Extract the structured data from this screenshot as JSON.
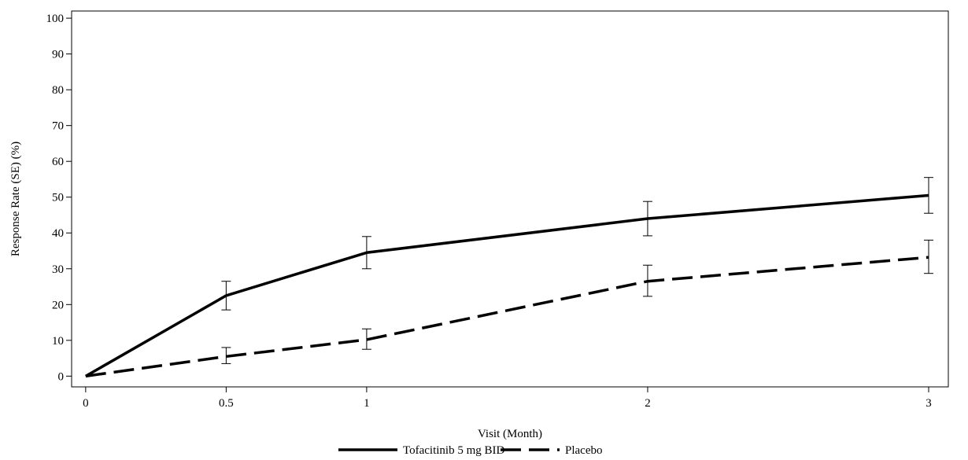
{
  "chart_data": {
    "type": "line",
    "title": "",
    "xlabel": "Visit (Month)",
    "ylabel": "Response Rate (SE) (%)",
    "xlim": [
      -0.05,
      3.07
    ],
    "ylim": [
      -3,
      102
    ],
    "x_ticks": [
      0,
      0.5,
      1,
      2,
      3
    ],
    "x_tick_labels": [
      "0",
      "0.5",
      "1",
      "2",
      "3"
    ],
    "y_ticks": [
      0,
      10,
      20,
      30,
      40,
      50,
      60,
      70,
      80,
      90,
      100
    ],
    "y_tick_labels": [
      "0",
      "10",
      "20",
      "30",
      "40",
      "50",
      "60",
      "70",
      "80",
      "90",
      "100"
    ],
    "grid": false,
    "legend_position": "bottom",
    "series": [
      {
        "name": "Tofacitinib 5 mg BID",
        "line_style": "solid",
        "color": "#000000",
        "points": [
          {
            "x": 0,
            "y": 0,
            "se_low": null,
            "se_high": null
          },
          {
            "x": 0.5,
            "y": 22.5,
            "se_low": 18.5,
            "se_high": 26.5
          },
          {
            "x": 1,
            "y": 34.5,
            "se_low": 30,
            "se_high": 39
          },
          {
            "x": 2,
            "y": 44,
            "se_low": 39.2,
            "se_high": 48.8
          },
          {
            "x": 3,
            "y": 50.5,
            "se_low": 45.5,
            "se_high": 55.5
          }
        ]
      },
      {
        "name": "Placebo",
        "line_style": "dashed",
        "color": "#000000",
        "points": [
          {
            "x": 0,
            "y": 0,
            "se_low": null,
            "se_high": null
          },
          {
            "x": 0.5,
            "y": 5.5,
            "se_low": 3.5,
            "se_high": 8
          },
          {
            "x": 1,
            "y": 10.2,
            "se_low": 7.5,
            "se_high": 13.2
          },
          {
            "x": 2,
            "y": 26.5,
            "se_low": 22.3,
            "se_high": 31
          },
          {
            "x": 3,
            "y": 33.2,
            "se_low": 28.7,
            "se_high": 38
          }
        ]
      }
    ]
  }
}
